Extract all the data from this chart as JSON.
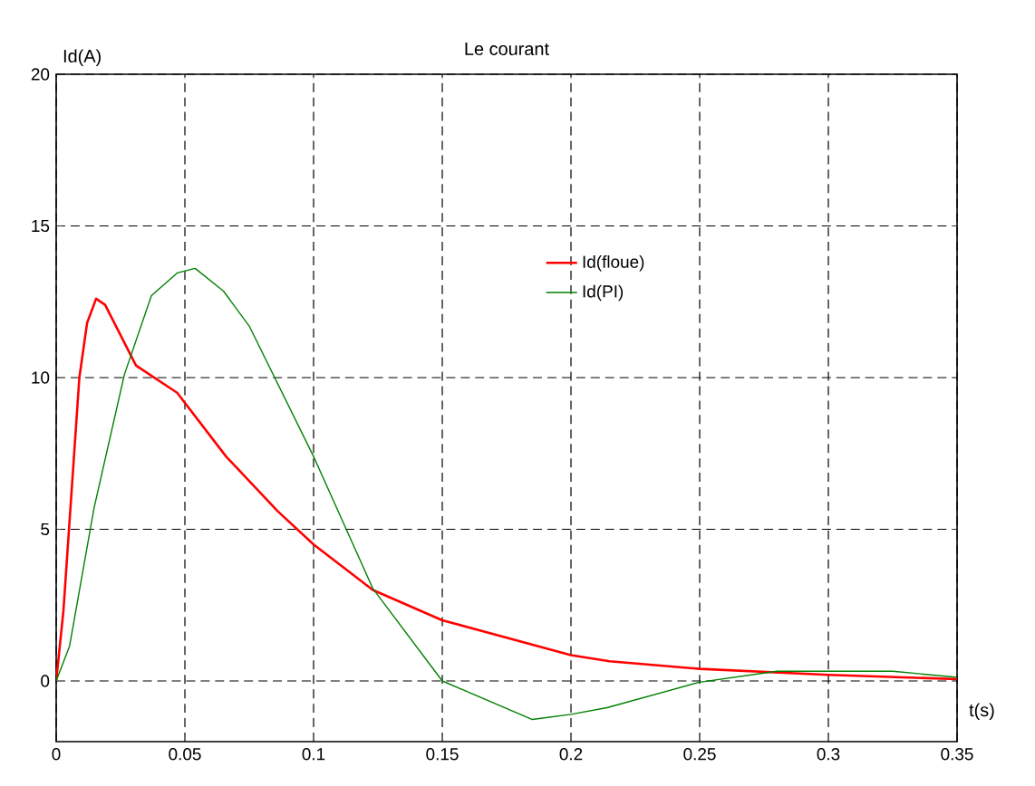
{
  "chart_data": {
    "type": "line",
    "title": "Le courant",
    "xlabel": "t(s)",
    "ylabel": "Id(A)",
    "xlim": [
      0,
      0.35
    ],
    "ylim": [
      -2,
      20
    ],
    "xticks": [
      0,
      0.05,
      0.1,
      0.15,
      0.2,
      0.25,
      0.3,
      0.35
    ],
    "yticks": [
      0,
      5,
      10,
      15,
      20
    ],
    "grid": true,
    "legend": "top",
    "line_style": "solid",
    "marker": "none",
    "series": [
      {
        "name": "Id(floue)",
        "color": "#ff0000",
        "x": [
          0,
          0.0028,
          0.009,
          0.012,
          0.0155,
          0.019,
          0.031,
          0.047,
          0.066,
          0.086,
          0.1,
          0.123,
          0.15,
          0.2,
          0.215,
          0.25,
          0.3,
          0.35
        ],
        "values": [
          0,
          2.3,
          10,
          11.8,
          12.6,
          12.4,
          10.4,
          9.5,
          7.4,
          5.6,
          4.5,
          3.0,
          2.0,
          0.85,
          0.65,
          0.4,
          0.2,
          0.06
        ]
      },
      {
        "name": "Id(PI)",
        "color": "#008000",
        "x": [
          0,
          0.0052,
          0.0147,
          0.0265,
          0.037,
          0.047,
          0.054,
          0.065,
          0.075,
          0.1,
          0.123,
          0.15,
          0.185,
          0.2,
          0.214,
          0.25,
          0.28,
          0.325,
          0.35
        ],
        "values": [
          0,
          1.15,
          5.7,
          10.1,
          12.7,
          13.45,
          13.6,
          12.85,
          11.7,
          7.4,
          3.05,
          0,
          -1.27,
          -1.1,
          -0.88,
          -0.04,
          0.32,
          0.32,
          0.12
        ]
      }
    ]
  }
}
